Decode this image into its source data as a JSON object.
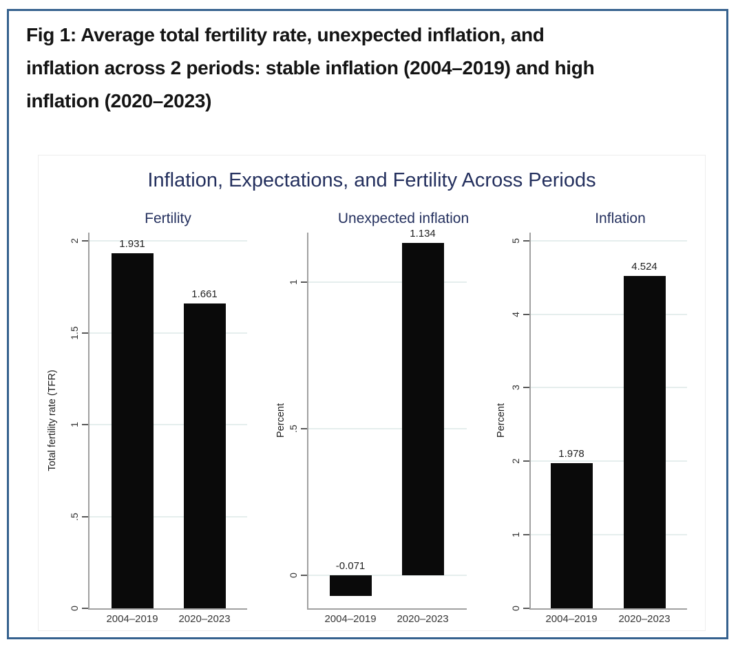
{
  "figure": {
    "caption_lines": [
      "Fig 1: Average total fertility rate, unexpected inflation, and",
      "inflation across 2 periods: stable inflation (2004–2019) and high",
      "inflation (2020–2023)"
    ],
    "border_color": "#35618e"
  },
  "chart_data": {
    "type": "bar",
    "title": "Inflation, Expectations, and Fertility Across Periods",
    "categories": [
      "2004–2019",
      "2020–2023"
    ],
    "grid": true,
    "legend": false,
    "colors": {
      "bar": "#0a0a0a",
      "title_navy": "#24305e",
      "gridline": "#e5eeed",
      "axis_line": "#a0a0a0",
      "border_blue": "#35618e"
    },
    "panels": [
      {
        "title": "Fertility",
        "ylabel": "Total fertility rate (TFR)",
        "values": [
          1.931,
          1.661
        ],
        "value_labels": [
          "1.931",
          "1.661"
        ],
        "yticks": [
          {
            "v": 0,
            "label": "0"
          },
          {
            "v": 0.5,
            "label": ".5"
          },
          {
            "v": 1,
            "label": "1"
          },
          {
            "v": 1.5,
            "label": "1.5"
          },
          {
            "v": 2,
            "label": "2"
          }
        ],
        "ylim": [
          0,
          2.045
        ]
      },
      {
        "title": "Unexpected inflation",
        "ylabel": "Percent",
        "values": [
          -0.071,
          1.134
        ],
        "value_labels": [
          "-0.071",
          "1.134"
        ],
        "yticks": [
          {
            "v": 0,
            "label": "0"
          },
          {
            "v": 0.5,
            "label": ".5"
          },
          {
            "v": 1,
            "label": "1"
          }
        ],
        "ylim": [
          -0.113,
          1.17
        ]
      },
      {
        "title": "Inflation",
        "ylabel": "Percent",
        "values": [
          1.978,
          4.524
        ],
        "value_labels": [
          "1.978",
          "4.524"
        ],
        "yticks": [
          {
            "v": 0,
            "label": "0"
          },
          {
            "v": 1,
            "label": "1"
          },
          {
            "v": 2,
            "label": "2"
          },
          {
            "v": 3,
            "label": "3"
          },
          {
            "v": 4,
            "label": "4"
          },
          {
            "v": 5,
            "label": "5"
          }
        ],
        "ylim": [
          0,
          5.11
        ]
      }
    ]
  }
}
